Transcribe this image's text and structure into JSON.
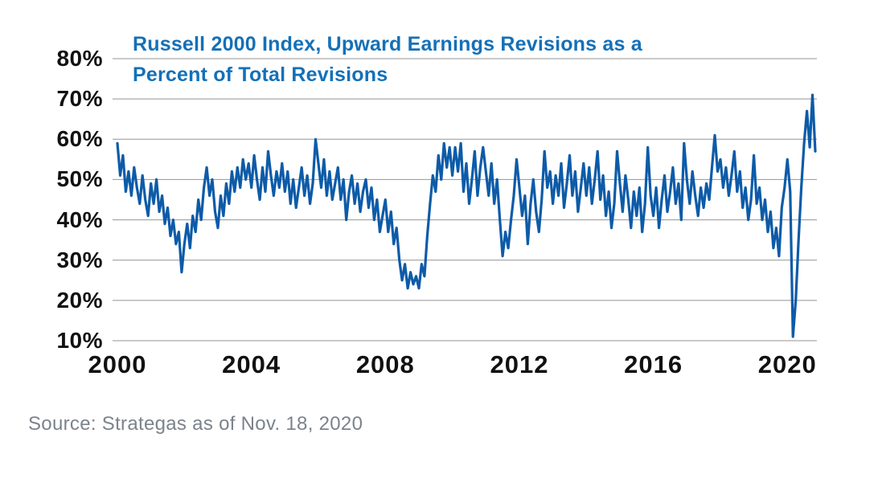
{
  "chart_data": {
    "type": "line",
    "title": "Russell 2000 Index, Upward Earnings Revisions as a Percent of Total Revisions",
    "title_lines": [
      "Russell 2000 Index, Upward Earnings Revisions as a",
      "Percent of Total Revisions"
    ],
    "xlabel": "",
    "ylabel": "",
    "legend": "none",
    "grid": "horizontal",
    "ylim": [
      10,
      80
    ],
    "xlim": [
      2000,
      2020.92
    ],
    "y_tick_labels": [
      "80%",
      "70%",
      "60%",
      "50%",
      "40%",
      "30%",
      "20%",
      "10%"
    ],
    "y_tick_values": [
      80,
      70,
      60,
      50,
      40,
      30,
      20,
      10
    ],
    "x_tick_labels": [
      "2000",
      "2004",
      "2008",
      "2012",
      "2016",
      "2020"
    ],
    "x_tick_values": [
      2000,
      2004,
      2008,
      2012,
      2016,
      2020
    ],
    "colors": {
      "line": "#0d5ba8",
      "grid": "#949494",
      "title": "#1470b8",
      "axis_labels": "#111111"
    },
    "series": [
      {
        "name": "Upward earnings revisions as a percent of total revisions",
        "unit": "%",
        "start_year": 2000,
        "points_per_year": 12,
        "values": [
          59,
          51,
          56,
          47,
          52,
          46,
          53,
          48,
          44,
          51,
          45,
          41,
          49,
          44,
          50,
          42,
          46,
          39,
          43,
          36,
          40,
          34,
          37,
          27,
          34,
          39,
          33,
          41,
          37,
          45,
          40,
          48,
          53,
          46,
          50,
          42,
          38,
          46,
          41,
          49,
          44,
          52,
          47,
          53,
          48,
          55,
          50,
          54,
          48,
          56,
          50,
          45,
          53,
          47,
          57,
          51,
          46,
          52,
          48,
          54,
          47,
          52,
          44,
          50,
          43,
          48,
          53,
          46,
          51,
          44,
          49,
          60,
          54,
          48,
          55,
          46,
          52,
          45,
          49,
          53,
          45,
          50,
          40,
          47,
          51,
          44,
          49,
          42,
          47,
          50,
          43,
          48,
          40,
          45,
          37,
          41,
          45,
          37,
          42,
          34,
          38,
          30,
          25,
          29,
          23,
          27,
          24,
          26,
          23,
          29,
          26,
          36,
          44,
          51,
          47,
          56,
          50,
          59,
          53,
          58,
          51,
          58,
          52,
          59,
          47,
          54,
          44,
          50,
          57,
          46,
          53,
          58,
          52,
          46,
          54,
          44,
          50,
          40,
          31,
          37,
          33,
          40,
          46,
          55,
          48,
          41,
          46,
          34,
          44,
          50,
          42,
          37,
          45,
          57,
          48,
          52,
          44,
          51,
          46,
          54,
          43,
          49,
          56,
          46,
          52,
          42,
          48,
          54,
          46,
          53,
          44,
          50,
          57,
          45,
          51,
          41,
          47,
          38,
          44,
          57,
          49,
          42,
          51,
          45,
          38,
          47,
          41,
          48,
          37,
          44,
          58,
          46,
          41,
          48,
          38,
          45,
          51,
          42,
          47,
          53,
          44,
          49,
          40,
          59,
          50,
          44,
          52,
          46,
          41,
          48,
          43,
          49,
          45,
          53,
          61,
          52,
          55,
          48,
          53,
          46,
          51,
          57,
          47,
          52,
          43,
          48,
          40,
          45,
          56,
          44,
          48,
          40,
          45,
          37,
          42,
          33,
          38,
          31,
          43,
          48,
          55,
          47,
          11,
          20,
          35,
          48,
          59,
          67,
          58,
          71,
          57
        ]
      }
    ]
  },
  "source": {
    "text": "Source: Strategas as of Nov. 18, 2020",
    "color": "#7b838b"
  }
}
